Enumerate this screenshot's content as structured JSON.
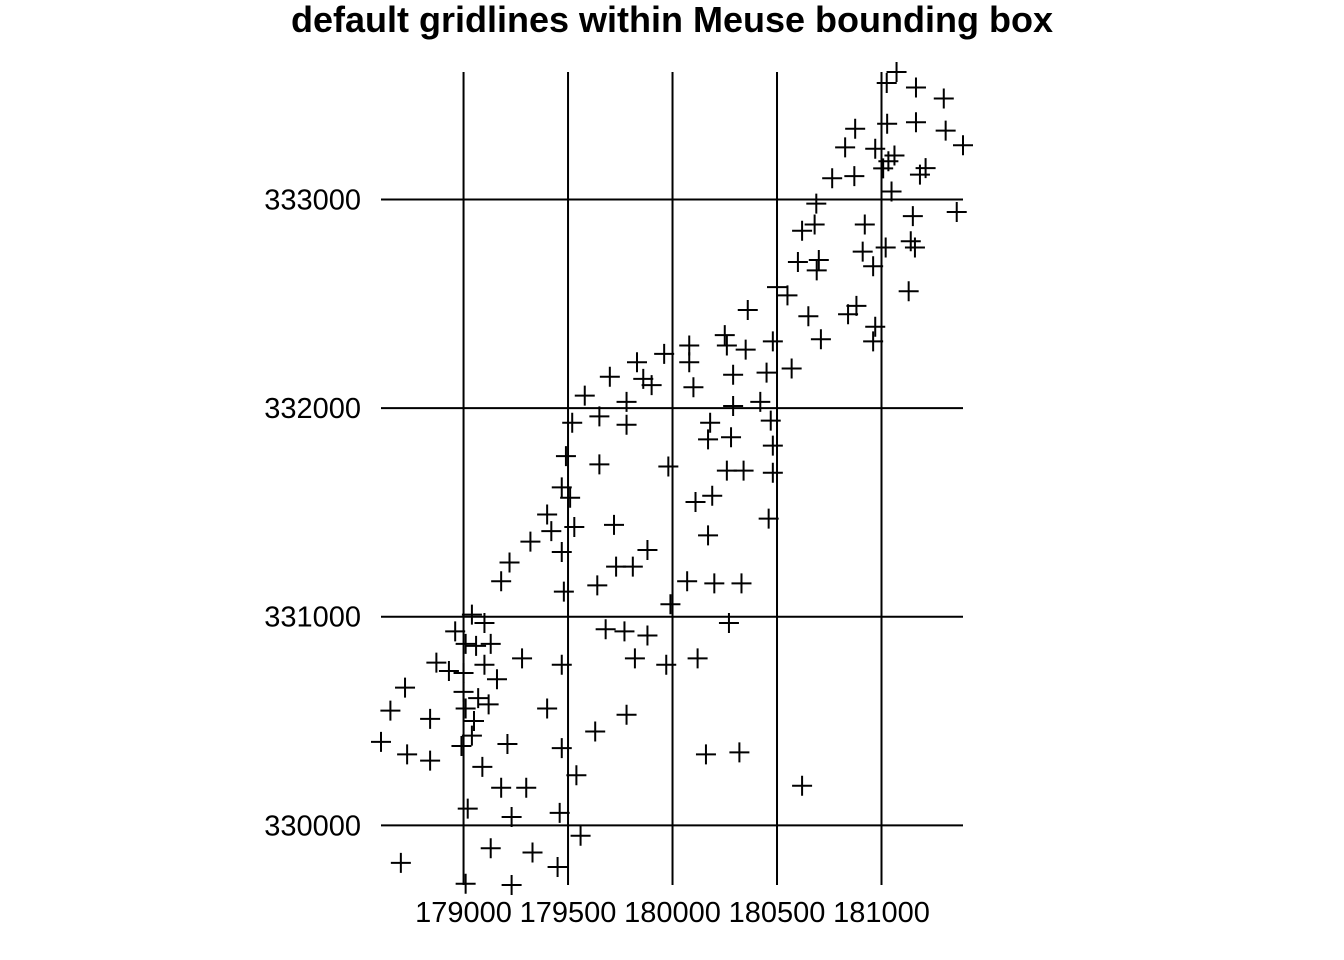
{
  "chart_data": {
    "type": "scatter",
    "title": "default gridlines within Meuse bounding box",
    "xlabel": "",
    "ylabel": "",
    "marker": "plus",
    "x_gridlines": [
      179000,
      179500,
      180000,
      180500,
      181000
    ],
    "y_gridlines": [
      330000,
      331000,
      332000,
      333000
    ],
    "x_ticks": [
      179000,
      179500,
      180000,
      180500,
      181000
    ],
    "x_tick_labels": [
      "179000",
      "179500",
      "180000",
      "180500",
      "181000"
    ],
    "y_ticks": [
      330000,
      331000,
      332000,
      333000
    ],
    "y_tick_labels": [
      "330000",
      "331000",
      "332000",
      "333000"
    ],
    "xlim": [
      178605,
      181390
    ],
    "ylim": [
      329714,
      333611
    ],
    "grid_xrange": [
      178605,
      181390
    ],
    "grid_yrange": [
      329714,
      333611
    ],
    "points": [
      [
        181072,
        333611
      ],
      [
        181025,
        333558
      ],
      [
        181165,
        333537
      ],
      [
        181298,
        333484
      ],
      [
        181307,
        333330
      ],
      [
        181390,
        333260
      ],
      [
        181165,
        333370
      ],
      [
        181027,
        333363
      ],
      [
        180874,
        333339
      ],
      [
        180826,
        333250
      ],
      [
        180970,
        333243
      ],
      [
        181062,
        333211
      ],
      [
        181033,
        333183
      ],
      [
        181008,
        333149
      ],
      [
        181211,
        333150
      ],
      [
        181184,
        333119
      ],
      [
        180870,
        333112
      ],
      [
        180764,
        333102
      ],
      [
        181048,
        333038
      ],
      [
        180688,
        332980
      ],
      [
        180680,
        332880
      ],
      [
        180620,
        332850
      ],
      [
        180920,
        332880
      ],
      [
        181150,
        332920
      ],
      [
        181360,
        332940
      ],
      [
        181020,
        332770
      ],
      [
        181140,
        332800
      ],
      [
        181160,
        332770
      ],
      [
        180910,
        332750
      ],
      [
        180960,
        332680
      ],
      [
        180700,
        332710
      ],
      [
        180600,
        332700
      ],
      [
        180690,
        332660
      ],
      [
        180500,
        332580
      ],
      [
        180550,
        332540
      ],
      [
        181130,
        332560
      ],
      [
        180880,
        332490
      ],
      [
        180840,
        332450
      ],
      [
        180650,
        332440
      ],
      [
        180360,
        332470
      ],
      [
        180970,
        332390
      ],
      [
        180960,
        332320
      ],
      [
        180710,
        332330
      ],
      [
        180480,
        332320
      ],
      [
        180570,
        332190
      ],
      [
        180250,
        332350
      ],
      [
        180260,
        332300
      ],
      [
        180350,
        332280
      ],
      [
        180080,
        332300
      ],
      [
        179960,
        332260
      ],
      [
        179830,
        332220
      ],
      [
        179860,
        332140
      ],
      [
        180080,
        332220
      ],
      [
        179900,
        332110
      ],
      [
        179700,
        332150
      ],
      [
        179580,
        332060
      ],
      [
        179780,
        332030
      ],
      [
        179780,
        331920
      ],
      [
        179650,
        331960
      ],
      [
        179520,
        331930
      ],
      [
        180100,
        332100
      ],
      [
        180290,
        332160
      ],
      [
        180450,
        332170
      ],
      [
        180420,
        332030
      ],
      [
        180290,
        332010
      ],
      [
        180470,
        331940
      ],
      [
        180180,
        331930
      ],
      [
        180170,
        331850
      ],
      [
        180280,
        331860
      ],
      [
        180480,
        331820
      ],
      [
        179490,
        331770
      ],
      [
        179650,
        331730
      ],
      [
        179980,
        331720
      ],
      [
        180260,
        331700
      ],
      [
        180340,
        331700
      ],
      [
        180480,
        331690
      ],
      [
        179470,
        331620
      ],
      [
        179510,
        331570
      ],
      [
        180110,
        331550
      ],
      [
        180190,
        331580
      ],
      [
        180460,
        331470
      ],
      [
        179400,
        331490
      ],
      [
        179420,
        331410
      ],
      [
        179530,
        331430
      ],
      [
        179720,
        331440
      ],
      [
        180170,
        331390
      ],
      [
        179320,
        331360
      ],
      [
        179470,
        331310
      ],
      [
        179880,
        331320
      ],
      [
        179730,
        331240
      ],
      [
        179810,
        331240
      ],
      [
        179220,
        331260
      ],
      [
        179180,
        331170
      ],
      [
        179480,
        331120
      ],
      [
        179640,
        331150
      ],
      [
        180070,
        331170
      ],
      [
        180200,
        331160
      ],
      [
        180330,
        331160
      ],
      [
        179990,
        331060
      ],
      [
        179040,
        331010
      ],
      [
        179100,
        330970
      ],
      [
        178960,
        330930
      ],
      [
        179010,
        330870
      ],
      [
        179060,
        330860
      ],
      [
        179130,
        330870
      ],
      [
        179680,
        330940
      ],
      [
        179770,
        330930
      ],
      [
        179880,
        330910
      ],
      [
        180270,
        330970
      ],
      [
        178870,
        330780
      ],
      [
        178930,
        330740
      ],
      [
        179000,
        330730
      ],
      [
        179100,
        330770
      ],
      [
        179160,
        330700
      ],
      [
        179280,
        330800
      ],
      [
        179470,
        330770
      ],
      [
        179820,
        330800
      ],
      [
        179970,
        330770
      ],
      [
        180120,
        330800
      ],
      [
        178720,
        330660
      ],
      [
        179000,
        330640
      ],
      [
        179070,
        330610
      ],
      [
        179120,
        330580
      ],
      [
        179010,
        330560
      ],
      [
        178650,
        330550
      ],
      [
        178840,
        330510
      ],
      [
        179050,
        330500
      ],
      [
        179400,
        330560
      ],
      [
        179780,
        330530
      ],
      [
        179630,
        330450
      ],
      [
        178605,
        330400
      ],
      [
        179040,
        330430
      ],
      [
        178990,
        330380
      ],
      [
        179210,
        330390
      ],
      [
        179470,
        330370
      ],
      [
        178730,
        330340
      ],
      [
        178840,
        330310
      ],
      [
        179090,
        330280
      ],
      [
        179540,
        330240
      ],
      [
        180160,
        330340
      ],
      [
        180320,
        330350
      ],
      [
        180620,
        330190
      ],
      [
        179180,
        330180
      ],
      [
        179300,
        330180
      ],
      [
        179020,
        330080
      ],
      [
        179230,
        330040
      ],
      [
        179460,
        330060
      ],
      [
        179560,
        329950
      ],
      [
        178700,
        329820
      ],
      [
        179130,
        329890
      ],
      [
        179330,
        329870
      ],
      [
        179450,
        329800
      ],
      [
        179010,
        329720
      ],
      [
        179230,
        329714
      ]
    ]
  }
}
